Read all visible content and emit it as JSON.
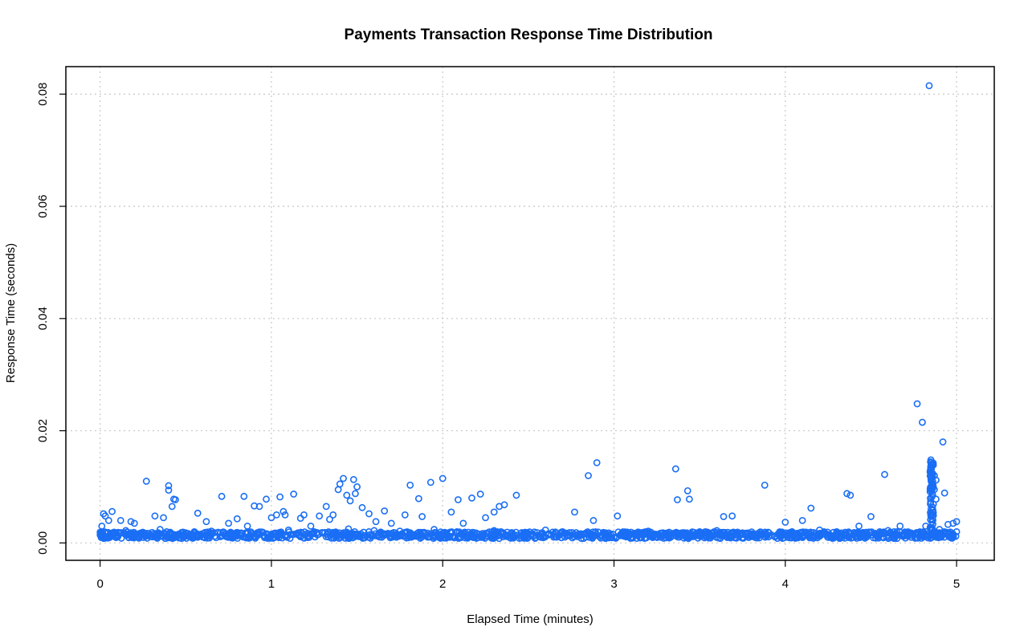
{
  "chart_data": {
    "type": "scatter",
    "title": "Payments Transaction Response Time Distribution",
    "xlabel": "Elapsed Time (minutes)",
    "ylabel": "Response Time (seconds)",
    "xlim": [
      -0.2,
      5.22
    ],
    "ylim": [
      -0.0031,
      0.0849
    ],
    "x_ticks": [
      0,
      1,
      2,
      3,
      4,
      5
    ],
    "y_ticks": [
      0.0,
      0.02,
      0.04,
      0.06,
      0.08
    ],
    "x_tick_labels": [
      "0",
      "1",
      "2",
      "3",
      "4",
      "5"
    ],
    "y_tick_labels": [
      "0.00",
      "0.02",
      "0.04",
      "0.06",
      "0.08"
    ],
    "grid": true,
    "marker": "open-circle",
    "color": "#1a6ef5",
    "series": [
      {
        "x": [
          0.01,
          0.02,
          0.03,
          0.05,
          0.07,
          0.12,
          0.18,
          0.2,
          0.27,
          0.32,
          0.37,
          0.4,
          0.4,
          0.42,
          0.43,
          0.44,
          0.57,
          0.62,
          0.71,
          0.75,
          0.8,
          0.84,
          0.86,
          0.9,
          0.93,
          0.97,
          1.0,
          1.03,
          1.05,
          1.07,
          1.08,
          1.13,
          1.17,
          1.19,
          1.23,
          1.28,
          1.32,
          1.34,
          1.36,
          1.39,
          1.4,
          1.42,
          1.44,
          1.46,
          1.48,
          1.49,
          1.5,
          1.53,
          1.57,
          1.61,
          1.66,
          1.7,
          1.78,
          1.81,
          1.86,
          1.88,
          1.93,
          2.0,
          2.05,
          2.09,
          2.12,
          2.17,
          2.22,
          2.25,
          2.3,
          2.33,
          2.36,
          2.43,
          2.77,
          2.85,
          2.88,
          2.9,
          3.02,
          3.36,
          3.37,
          3.43,
          3.44,
          3.64,
          3.69,
          3.88,
          4.0,
          4.1,
          4.15,
          4.36,
          4.38,
          4.43,
          4.5,
          4.58,
          4.67,
          4.77,
          4.8,
          4.82,
          4.84,
          4.85,
          4.85,
          4.85,
          4.86,
          4.86,
          4.86,
          4.87,
          4.87,
          4.88,
          4.88,
          4.92,
          4.93,
          4.95,
          4.98,
          5.0,
          0.15,
          0.35,
          0.65,
          1.1,
          1.45,
          1.6,
          1.95,
          2.3,
          2.6,
          3.2,
          3.6,
          4.2,
          4.6,
          4.9,
          0.25,
          0.55,
          0.95,
          1.25,
          1.75,
          2.15,
          2.7,
          3.1,
          3.5,
          3.9,
          4.3,
          4.7,
          0.08,
          0.48,
          0.88,
          1.38,
          1.68,
          2.08,
          2.48,
          2.95,
          3.3,
          3.75,
          4.05,
          4.45,
          4.95
        ],
        "y": [
          0.003,
          0.0052,
          0.0048,
          0.004,
          0.0056,
          0.004,
          0.0038,
          0.0035,
          0.011,
          0.0048,
          0.0045,
          0.0102,
          0.0094,
          0.0065,
          0.0078,
          0.0077,
          0.0053,
          0.0038,
          0.0083,
          0.0035,
          0.0043,
          0.0083,
          0.003,
          0.0066,
          0.0065,
          0.0078,
          0.0045,
          0.005,
          0.0082,
          0.0056,
          0.005,
          0.0087,
          0.0044,
          0.005,
          0.003,
          0.0048,
          0.0065,
          0.0042,
          0.005,
          0.0095,
          0.0105,
          0.0115,
          0.0085,
          0.0075,
          0.0113,
          0.0088,
          0.01,
          0.0063,
          0.0052,
          0.0038,
          0.0057,
          0.0035,
          0.005,
          0.0103,
          0.0079,
          0.0047,
          0.0108,
          0.0115,
          0.0055,
          0.0077,
          0.0035,
          0.008,
          0.0087,
          0.0045,
          0.0055,
          0.0065,
          0.0068,
          0.0085,
          0.0055,
          0.012,
          0.004,
          0.0143,
          0.0048,
          0.0132,
          0.0077,
          0.0093,
          0.0078,
          0.0047,
          0.0048,
          0.0103,
          0.0037,
          0.004,
          0.0062,
          0.0088,
          0.0085,
          0.003,
          0.0047,
          0.0122,
          0.003,
          0.0248,
          0.0215,
          0.003,
          0.0815,
          0.0148,
          0.0125,
          0.01,
          0.014,
          0.011,
          0.0085,
          0.012,
          0.0095,
          0.0112,
          0.0078,
          0.018,
          0.0089,
          0.0033,
          0.0035,
          0.0038,
          0.0022,
          0.0024,
          0.0021,
          0.0023,
          0.0025,
          0.0022,
          0.0024,
          0.0022,
          0.0023,
          0.0021,
          0.0022,
          0.0023,
          0.0022,
          0.0024,
          0.0019,
          0.002,
          0.0019,
          0.002,
          0.0021,
          0.0019,
          0.002,
          0.0019,
          0.002,
          0.0019,
          0.002,
          0.0019,
          0.0017,
          0.0018,
          0.0017,
          0.0018,
          0.0017,
          0.0018,
          0.0017,
          0.0018,
          0.0017,
          0.0018,
          0.0017,
          0.0018,
          0.0017
        ]
      }
    ],
    "baseline_band": {
      "x_range": [
        0,
        5.0
      ],
      "y_range": [
        0.0008,
        0.002
      ]
    },
    "spike_cluster": {
      "x": 4.855,
      "y_range": [
        0.002,
        0.0145
      ]
    }
  }
}
